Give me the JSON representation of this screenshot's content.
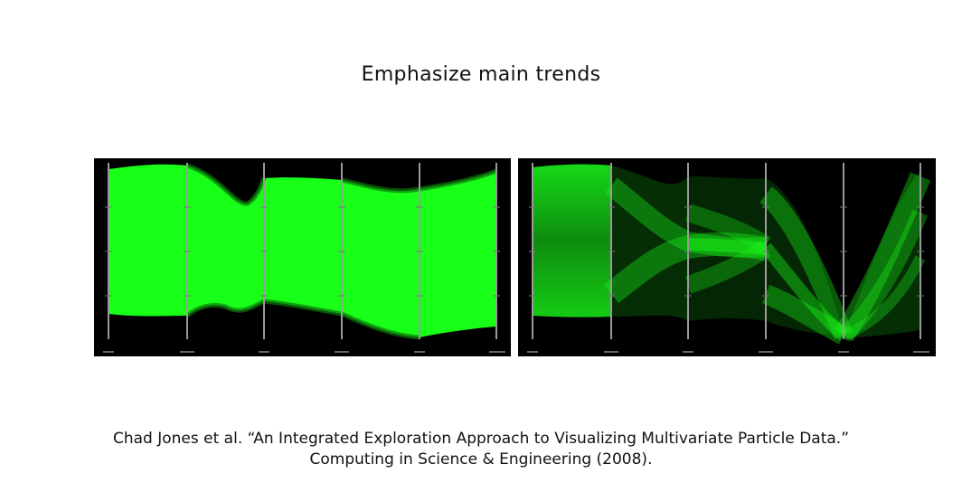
{
  "slide": {
    "title": "Emphasize main trends",
    "citation_line1": "Chad Jones et al.  “An Integrated Exploration Approach to Visualizing Multivariate Particle Data.”",
    "citation_line2": "Computing in Science & Engineering (2008)."
  },
  "figures": {
    "left": {
      "description_name": "dense-parallel-coordinates",
      "line_color": "#19ff19",
      "axis_count": 6
    },
    "right": {
      "description_name": "trend-emphasized-parallel-coordinates",
      "line_color": "#19ff19",
      "axis_count": 6
    }
  }
}
